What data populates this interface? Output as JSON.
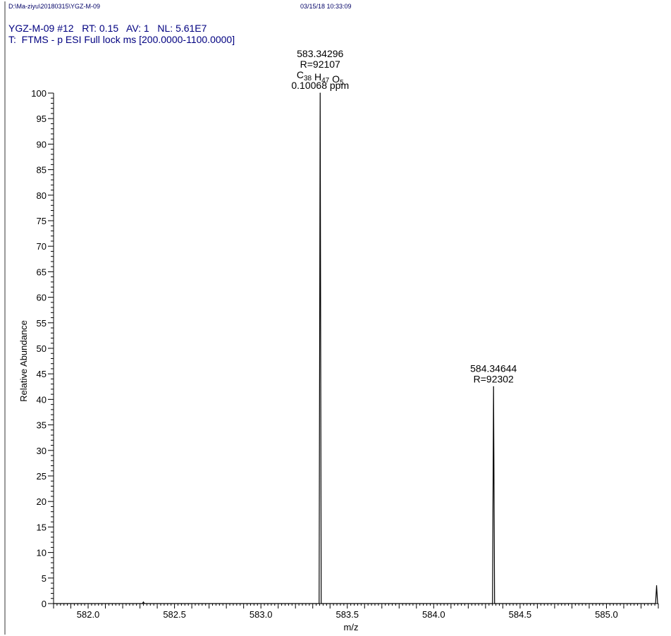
{
  "header": {
    "file_path": "D:\\Ma-ziyu\\20180315\\YGZ-M-09",
    "datetime": "03/15/18 10:33:09",
    "scan_info": "YGZ-M-09 #12   RT: 0.15   AV: 1   NL: 5.61E7",
    "filter": "T:  FTMS - p ESI Full lock ms [200.0000-1100.0000]"
  },
  "chart_data": {
    "type": "line",
    "xlabel": "m/z",
    "ylabel": "Relative Abundance",
    "xlim": [
      581.8,
      585.3
    ],
    "ylim": [
      0,
      100
    ],
    "x_ticks": [
      582.0,
      582.5,
      583.0,
      583.5,
      584.0,
      584.5,
      585.0
    ],
    "x_tick_labels": [
      "582.0",
      "582.5",
      "583.0",
      "583.5",
      "584.0",
      "584.5",
      "585.0"
    ],
    "y_ticks": [
      0,
      5,
      10,
      15,
      20,
      25,
      30,
      35,
      40,
      45,
      50,
      55,
      60,
      65,
      70,
      75,
      80,
      85,
      90,
      95,
      100
    ],
    "y_tick_labels": [
      "0",
      "5",
      "10",
      "15",
      "20",
      "25",
      "30",
      "35",
      "40",
      "45",
      "50",
      "55",
      "60",
      "65",
      "70",
      "75",
      "80",
      "85",
      "90",
      "95",
      "100"
    ],
    "peaks": [
      {
        "mz": 582.32,
        "intensity": 0.3
      },
      {
        "mz": 583.34296,
        "intensity": 100
      },
      {
        "mz": 584.34644,
        "intensity": 42.5
      },
      {
        "mz": 585.29,
        "intensity": 3.5
      }
    ],
    "annotations": [
      {
        "mz": 583.34296,
        "lines": [
          "583.34296",
          "R=92107"
        ],
        "formula": {
          "c": "38",
          "h": "47",
          "o": "5"
        },
        "extra": "0.10068 ppm"
      },
      {
        "mz": 584.34644,
        "lines": [
          "584.34644",
          "R=92302"
        ]
      }
    ],
    "colors": {
      "trace": "#000000",
      "axis": "#000000",
      "label": "#000000"
    }
  }
}
